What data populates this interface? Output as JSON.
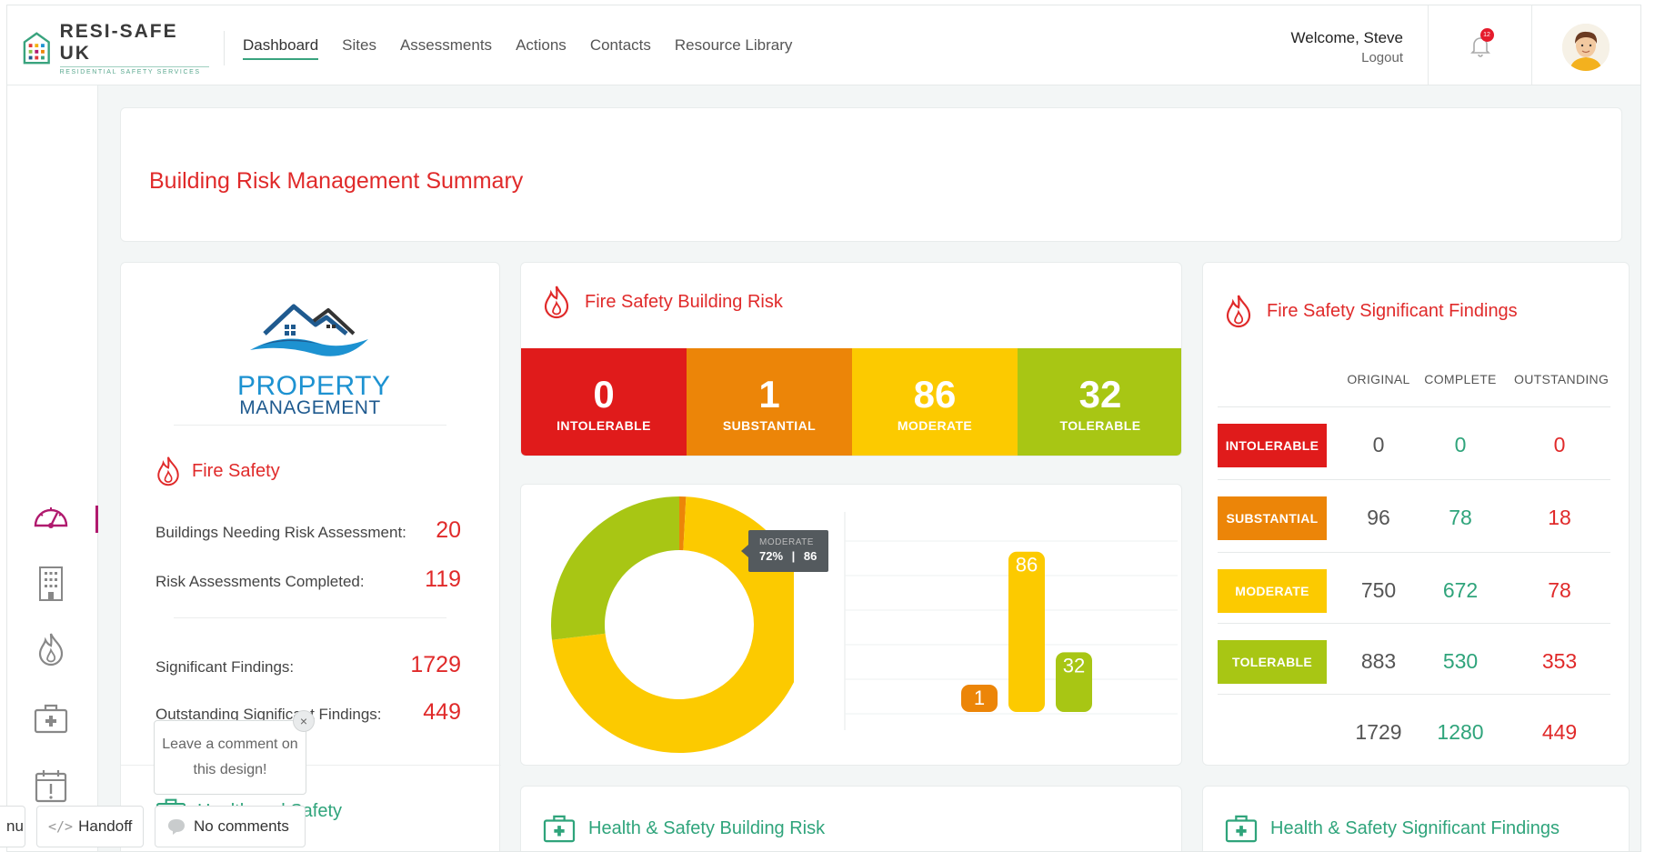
{
  "brand": {
    "name": "RESI-SAFE UK",
    "tagline": "RESIDENTIAL SAFETY SERVICES"
  },
  "nav": [
    "Dashboard",
    "Sites",
    "Assessments",
    "Actions",
    "Contacts",
    "Resource Library"
  ],
  "user": {
    "welcome": "Welcome, Steve",
    "logout": "Logout",
    "notifications": "12"
  },
  "page": {
    "title": "Building Risk Management Summary"
  },
  "client": {
    "logo_line1": "PROPERTY",
    "logo_line2": "MANAGEMENT"
  },
  "fire_safety": {
    "title": "Fire Safety",
    "stats": [
      {
        "label": "Buildings Needing Risk Assessment:",
        "value": "20"
      },
      {
        "label": "Risk Assessments Completed:",
        "value": "119"
      },
      {
        "label": "Significant Findings:",
        "value": "1729"
      },
      {
        "label": "Outstanding Significant Findings:",
        "value": "449"
      }
    ]
  },
  "health_safety": {
    "title": "Health and Safety"
  },
  "fire_risk": {
    "title": "Fire Safety Building Risk",
    "tiles": [
      {
        "value": "0",
        "label": "INTOLERABLE",
        "color": "#e01b1b"
      },
      {
        "value": "1",
        "label": "SUBSTANTIAL",
        "color": "#ec8508"
      },
      {
        "value": "86",
        "label": "MODERATE",
        "color": "#fcca00"
      },
      {
        "value": "32",
        "label": "TOLERABLE",
        "color": "#a8c614"
      }
    ]
  },
  "chart_data": {
    "type": "pie",
    "donut": true,
    "categories": [
      "Intolerable",
      "Substantial",
      "Moderate",
      "Tolerable"
    ],
    "values": [
      0,
      1,
      86,
      32
    ],
    "colors": [
      "#e01b1b",
      "#ec8508",
      "#fcca00",
      "#a8c614"
    ],
    "tooltip": {
      "category": "MODERATE",
      "percent": "72%",
      "sep": "|",
      "value": "86"
    },
    "bars": {
      "type": "bar",
      "categories": [
        "Substantial",
        "Moderate",
        "Tolerable"
      ],
      "values": [
        1,
        86,
        32
      ],
      "labels": [
        "1",
        "86",
        "32"
      ],
      "colors": [
        "#ec8508",
        "#fcca00",
        "#a8c614"
      ],
      "ylim": [
        0,
        100
      ]
    }
  },
  "findings": {
    "title": "Fire Safety Significant Findings",
    "columns": [
      "ORIGINAL",
      "COMPLETE",
      "OUTSTANDING"
    ],
    "rows": [
      {
        "label": "INTOLERABLE",
        "color": "#e01b1b",
        "original": "0",
        "complete": "0",
        "outstanding": "0"
      },
      {
        "label": "SUBSTANTIAL",
        "color": "#ec8508",
        "original": "96",
        "complete": "78",
        "outstanding": "18"
      },
      {
        "label": "MODERATE",
        "color": "#fcca00",
        "original": "750",
        "complete": "672",
        "outstanding": "78"
      },
      {
        "label": "TOLERABLE",
        "color": "#a8c614",
        "original": "883",
        "complete": "530",
        "outstanding": "353"
      }
    ],
    "totals": {
      "original": "1729",
      "complete": "1280",
      "outstanding": "449"
    }
  },
  "hs_risk": {
    "title": "Health & Safety Building Risk"
  },
  "hs_findings": {
    "title": "Health & Safety Significant Findings"
  },
  "overlay": {
    "comment_prompt": "Leave a comment on this design!",
    "close": "×",
    "menu_fragment": "nu",
    "handoff": "Handoff",
    "comments": "No comments"
  }
}
